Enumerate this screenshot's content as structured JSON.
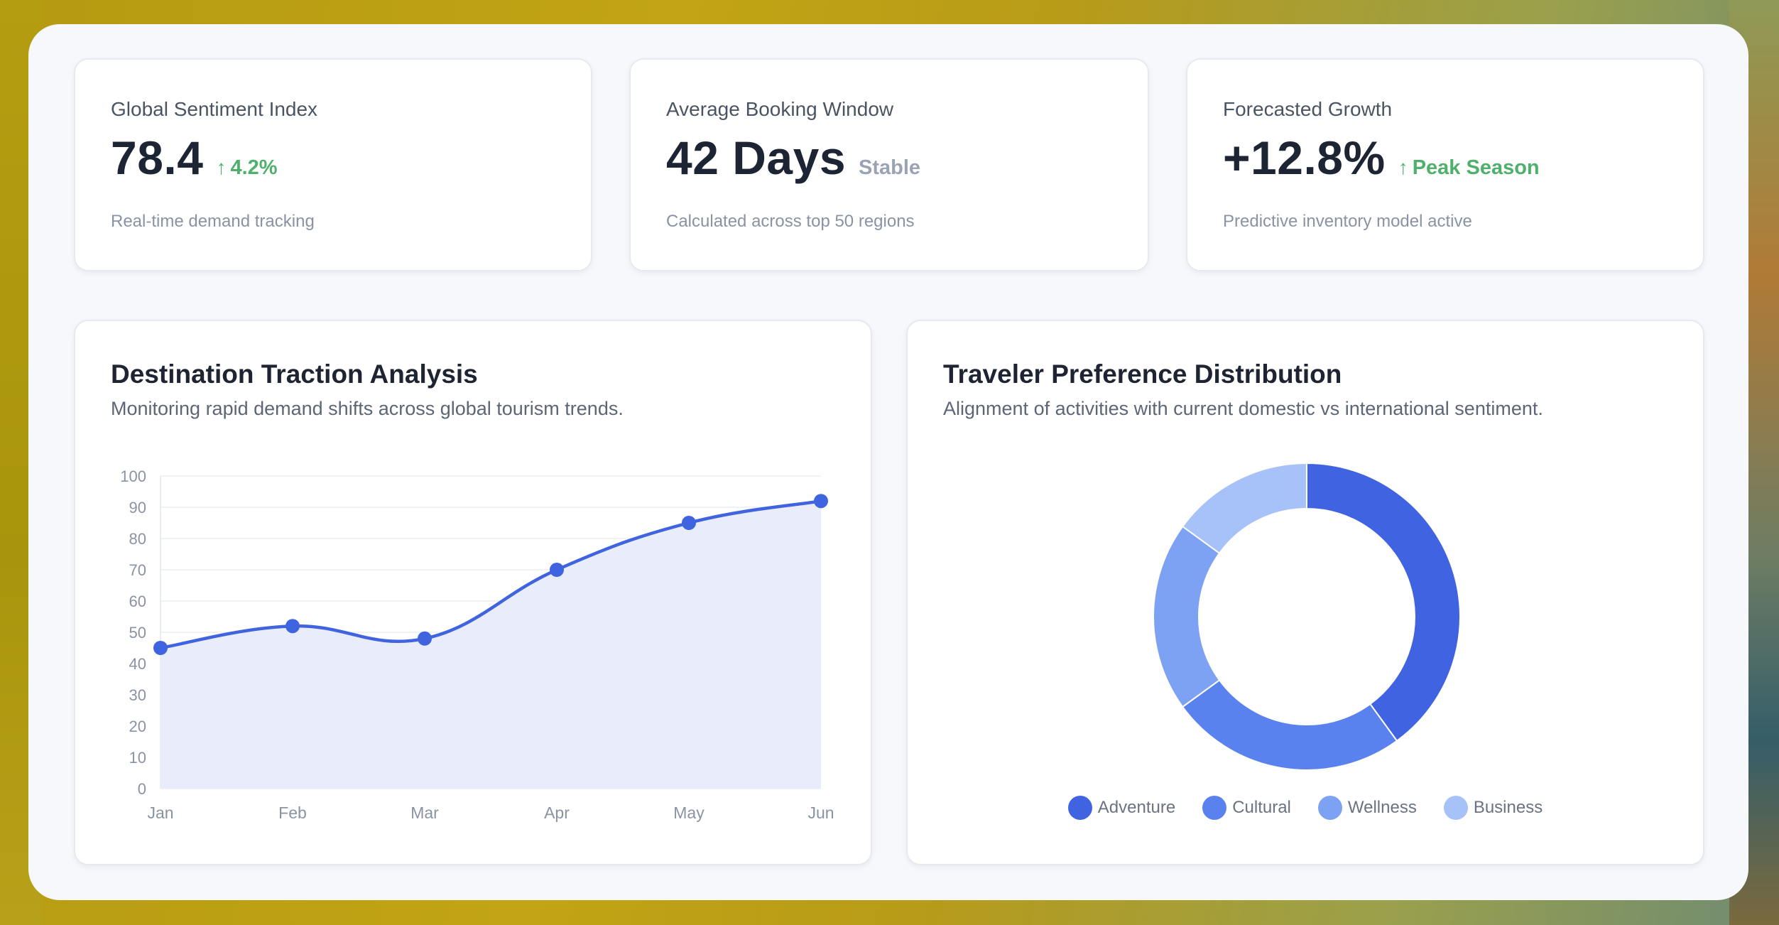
{
  "kpis": [
    {
      "label": "Global Sentiment Index",
      "value": "78.4",
      "delta": "4.2%",
      "delta_icon": "arrow-up-icon",
      "delta_type": "positive",
      "sub": "Real-time demand tracking"
    },
    {
      "label": "Average Booking Window",
      "value": "42 Days",
      "delta": "Stable",
      "delta_type": "neutral",
      "sub": "Calculated across top 50 regions"
    },
    {
      "label": "Forecasted Growth",
      "value": "+12.8%",
      "delta": "Peak Season",
      "delta_icon": "arrow-up-icon",
      "delta_type": "positive",
      "sub": "Predictive inventory model active"
    }
  ],
  "traction": {
    "title": "Destination Traction Analysis",
    "subtitle": "Monitoring rapid demand shifts across global tourism trends."
  },
  "preference": {
    "title": "Traveler Preference Distribution",
    "subtitle": "Alignment of activities with current domestic vs international sentiment."
  },
  "colors": {
    "accent": "#4063e0",
    "positive": "#4fb06c",
    "area_fill": "#e8ecfb"
  },
  "chart_data": [
    {
      "type": "line",
      "categories": [
        "Jan",
        "Feb",
        "Mar",
        "Apr",
        "May",
        "Jun"
      ],
      "series": [
        {
          "values": [
            45,
            52,
            48,
            70,
            85,
            92
          ]
        }
      ],
      "ylim": [
        0,
        100
      ],
      "yticks": [
        0,
        10,
        20,
        30,
        40,
        50,
        60,
        70,
        80,
        90,
        100
      ],
      "fill": "area",
      "grid": true,
      "color": "#4063e0"
    },
    {
      "type": "pie",
      "donut": true,
      "labels": [
        "Adventure",
        "Cultural",
        "Wellness",
        "Business"
      ],
      "values": [
        40,
        25,
        20,
        15
      ],
      "colors": [
        "#4064e1",
        "#5a82ee",
        "#7da2f3",
        "#a6c2f8"
      ],
      "legend": "bottom"
    }
  ]
}
